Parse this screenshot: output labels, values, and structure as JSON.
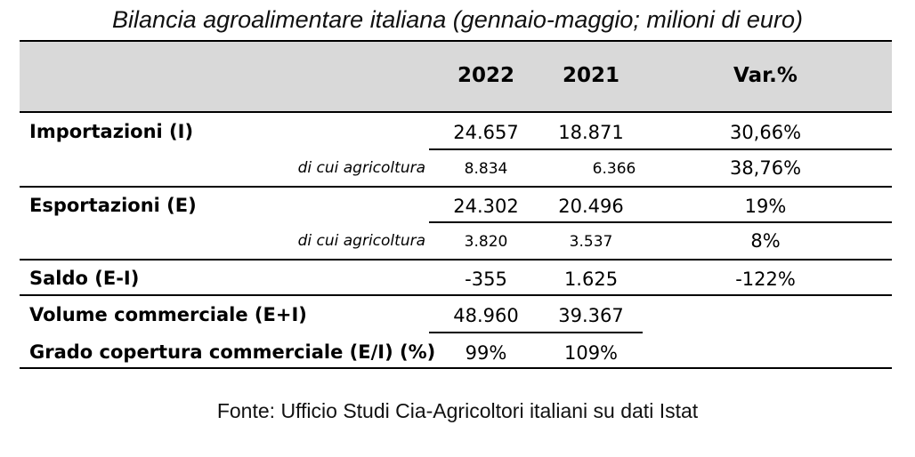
{
  "title": "Bilancia agroalimentare italiana (gennaio-maggio; milioni di euro)",
  "columns": {
    "y2022": "2022",
    "y2021": "2021",
    "var": "Var.%"
  },
  "rows": [
    {
      "label": "Importazioni (I)",
      "y2022": "24.657",
      "y2021": "18.871",
      "var": "30,66%"
    },
    {
      "label": "di cui agricoltura",
      "y2022": "8.834",
      "y2021": "6.366",
      "var": "38,76%"
    },
    {
      "label": "Esportazioni (E)",
      "y2022": "24.302",
      "y2021": "20.496",
      "var": "19%"
    },
    {
      "label": "di cui agricoltura",
      "y2022": "3.820",
      "y2021": "3.537",
      "var": "8%"
    },
    {
      "label": "Saldo (E-I)",
      "y2022": "-355",
      "y2021": "1.625",
      "var": "-122%"
    },
    {
      "label": "Volume commerciale (E+I)",
      "y2022": "48.960",
      "y2021": "39.367",
      "var": ""
    },
    {
      "label": "Grado copertura commerciale (E/I) (%)",
      "y2022": "99%",
      "y2021": "109%",
      "var": ""
    }
  ],
  "source": "Fonte: Ufficio Studi Cia-Agricoltori italiani su dati Istat"
}
